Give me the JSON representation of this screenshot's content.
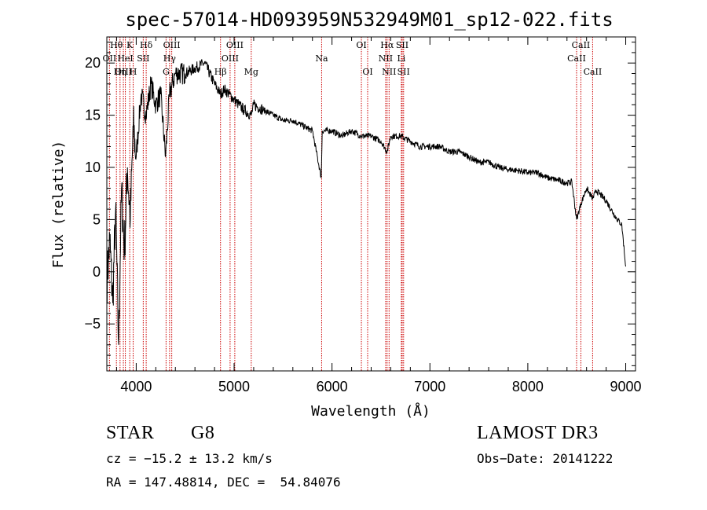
{
  "chart_data": {
    "type": "line",
    "title": "spec-57014-HD093959N532949M01_sp12-022.fits",
    "xlabel": "Wavelength (Å)",
    "ylabel": "Flux (relative)",
    "xlim": [
      3700,
      9100
    ],
    "ylim": [
      -9.5,
      22.5
    ],
    "x_ticks": [
      4000,
      5000,
      6000,
      7000,
      8000,
      9000
    ],
    "y_ticks": [
      -5,
      0,
      5,
      10,
      15,
      20
    ],
    "x_minor_step": 200,
    "y_minor_step": 1,
    "line_color": "#000000",
    "marker_color": "#cc0000",
    "series": [
      {
        "name": "flux",
        "x": [
          3700,
          3730,
          3760,
          3790,
          3820,
          3850,
          3880,
          3910,
          3940,
          3970,
          4000,
          4050,
          4101,
          4150,
          4200,
          4250,
          4300,
          4340,
          4400,
          4500,
          4600,
          4700,
          4800,
          4861,
          4900,
          5000,
          5100,
          5175,
          5200,
          5300,
          5400,
          5500,
          5600,
          5700,
          5800,
          5890,
          5900,
          6000,
          6100,
          6200,
          6300,
          6400,
          6500,
          6563,
          6600,
          6700,
          6800,
          6900,
          7000,
          7100,
          7200,
          7300,
          7400,
          7500,
          7600,
          7700,
          7800,
          7900,
          8000,
          8100,
          8200,
          8300,
          8400,
          8450,
          8498,
          8542,
          8600,
          8662,
          8700,
          8800,
          8900,
          8960,
          9000
        ],
        "y": [
          -1,
          3,
          -3,
          6,
          -7,
          8,
          2,
          10,
          5,
          14,
          11,
          17,
          15,
          18,
          16,
          17,
          11,
          17,
          19,
          19,
          19.5,
          20,
          18,
          17,
          17.5,
          16.5,
          15.5,
          15,
          16,
          15.5,
          15,
          14.5,
          14.5,
          14,
          13.5,
          9,
          13.5,
          13.5,
          13,
          13.5,
          13,
          13,
          12.5,
          11.5,
          13,
          13,
          12.5,
          12,
          12,
          12,
          11.5,
          11.5,
          11,
          10.5,
          10.5,
          10,
          9.8,
          9.7,
          9.5,
          9.5,
          9,
          8.8,
          8.5,
          8.6,
          5,
          6.5,
          8,
          7,
          7.8,
          6.8,
          5.2,
          4.5,
          0.5
        ]
      }
    ],
    "spectral_lines": [
      {
        "name": "Hθ",
        "x": 3798,
        "row": 1
      },
      {
        "name": "OII",
        "x": 3727,
        "row": 2
      },
      {
        "name": "OIII",
        "x": 3869,
        "row": 3
      },
      {
        "name": "Hη",
        "x": 3835,
        "row": 3
      },
      {
        "name": "HeI",
        "x": 3889,
        "row": 2
      },
      {
        "name": "K",
        "x": 3934,
        "row": 1
      },
      {
        "name": "H",
        "x": 3969,
        "row": 3
      },
      {
        "name": "SII",
        "x": 4072,
        "row": 2
      },
      {
        "name": "Hδ",
        "x": 4102,
        "row": 1
      },
      {
        "name": "G",
        "x": 4305,
        "row": 3
      },
      {
        "name": "Hγ",
        "x": 4341,
        "row": 2
      },
      {
        "name": "OIII",
        "x": 4363,
        "row": 1
      },
      {
        "name": "Hβ",
        "x": 4861,
        "row": 3
      },
      {
        "name": "OIII",
        "x": 4959,
        "row": 2
      },
      {
        "name": "OIII",
        "x": 5007,
        "row": 1
      },
      {
        "name": "Mg",
        "x": 5175,
        "row": 3
      },
      {
        "name": "Na",
        "x": 5894,
        "row": 2
      },
      {
        "name": "OI",
        "x": 6300,
        "row": 1
      },
      {
        "name": "OI",
        "x": 6364,
        "row": 3
      },
      {
        "name": "NII",
        "x": 6548,
        "row": 2
      },
      {
        "name": "Hα",
        "x": 6563,
        "row": 1
      },
      {
        "name": "NII",
        "x": 6583,
        "row": 3
      },
      {
        "name": "Li",
        "x": 6708,
        "row": 2
      },
      {
        "name": "SII",
        "x": 6717,
        "row": 1
      },
      {
        "name": "SII",
        "x": 6731,
        "row": 3
      },
      {
        "name": "CaII",
        "x": 8498,
        "row": 2
      },
      {
        "name": "CaII",
        "x": 8542,
        "row": 1
      },
      {
        "name": "CaII",
        "x": 8662,
        "row": 3
      }
    ]
  },
  "info": {
    "class_label": "STAR",
    "subclass": "G8",
    "survey": "LAMOST DR3",
    "cz": "cz = −15.2 ± 13.2 km/s",
    "obs_date": "Obs−Date: 20141222",
    "coords": "RA = 147.48814, DEC =  54.84076"
  }
}
